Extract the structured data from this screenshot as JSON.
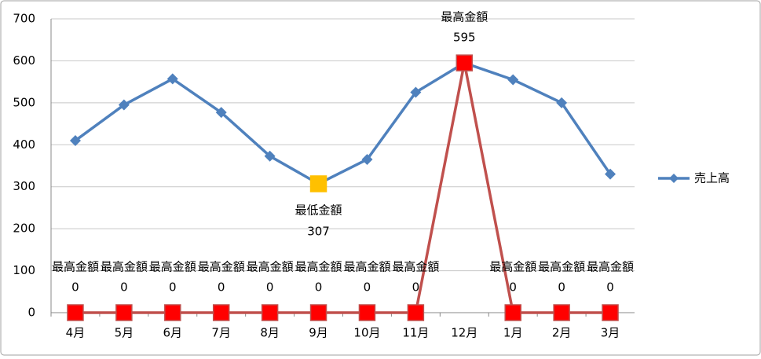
{
  "chart_data": {
    "type": "line",
    "categories": [
      "4月",
      "5月",
      "6月",
      "7月",
      "8月",
      "9月",
      "10月",
      "11月",
      "12月",
      "1月",
      "2月",
      "3月"
    ],
    "series": [
      {
        "name": "売上高",
        "color": "#4f81bd",
        "marker": "diamond",
        "in_legend": true,
        "values": [
          410,
          495,
          557,
          477,
          373,
          307,
          365,
          525,
          595,
          555,
          500,
          330
        ]
      },
      {
        "name": "最高金額",
        "color": "#c0504d",
        "marker_color": "#ff0000",
        "marker": "square",
        "in_legend": false,
        "data_labels": "above",
        "values": [
          0,
          0,
          0,
          0,
          0,
          0,
          0,
          0,
          595,
          0,
          0,
          0
        ]
      },
      {
        "name": "最低金額",
        "color": "#ffc000",
        "marker_color": "#ffc000",
        "marker": "square",
        "in_legend": false,
        "data_labels": "below",
        "values": [
          null,
          null,
          null,
          null,
          null,
          307,
          null,
          null,
          null,
          null,
          null,
          null
        ]
      }
    ],
    "ylim": [
      0,
      700
    ],
    "yticks": [
      0,
      100,
      200,
      300,
      400,
      500,
      600,
      700
    ],
    "grid": true,
    "legend": "right"
  }
}
